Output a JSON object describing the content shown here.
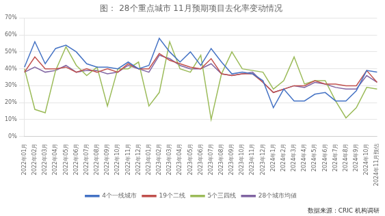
{
  "chart_data": {
    "type": "line",
    "title": "图： 28个重点城市 11月预期项目去化率变动情况",
    "annotations": [
      "数据来源：CRIC 机构调研"
    ],
    "categories": [
      "2022年01月",
      "2022年02月",
      "2022年03月",
      "2022年04月",
      "2022年05月",
      "2022年06月",
      "2022年07月",
      "2022年08月",
      "2022年09月",
      "2022年10月",
      "2022年11月",
      "2022年12月",
      "2023年01月",
      "2023年02月",
      "2023年03月",
      "2023年04月",
      "2023年05月",
      "2023年06月",
      "2023年07月",
      "2023年08月",
      "2023年09月",
      "2023年10月",
      "2023年11月",
      "2023年12月",
      "2024年1月",
      "2024年2月",
      "2024年3月",
      "2024年4月",
      "2024年5月",
      "2024年6月",
      "2024年7月",
      "2024年8月",
      "2024年9月",
      "2024年10月",
      "2024年11月预估"
    ],
    "series": [
      {
        "name": "4个一线城市",
        "color": "#4472C4",
        "values": [
          0.41,
          0.56,
          0.43,
          0.52,
          0.54,
          0.5,
          0.43,
          0.41,
          0.41,
          0.4,
          0.44,
          0.4,
          0.42,
          0.58,
          0.5,
          0.44,
          0.5,
          0.42,
          0.52,
          0.44,
          0.37,
          0.38,
          0.37,
          0.33,
          0.17,
          0.28,
          0.21,
          0.21,
          0.25,
          0.26,
          0.21,
          0.21,
          0.27,
          0.39,
          0.38
        ]
      },
      {
        "name": "19个二线",
        "color": "#C0504D",
        "values": [
          0.38,
          0.47,
          0.4,
          0.4,
          0.41,
          0.38,
          0.4,
          0.38,
          0.4,
          0.38,
          0.43,
          0.4,
          0.4,
          0.49,
          0.45,
          0.43,
          0.41,
          0.4,
          0.46,
          0.37,
          0.36,
          0.37,
          0.37,
          0.32,
          0.26,
          0.28,
          0.3,
          0.3,
          0.33,
          0.31,
          0.31,
          0.3,
          0.3,
          0.39,
          0.32
        ]
      },
      {
        "name": "5个三四线",
        "color": "#9BBB59",
        "values": [
          0.4,
          0.16,
          0.14,
          0.39,
          0.53,
          0.42,
          0.36,
          0.41,
          0.18,
          0.4,
          0.4,
          0.44,
          0.18,
          0.26,
          0.56,
          0.4,
          0.38,
          0.48,
          0.1,
          0.37,
          0.5,
          0.4,
          0.39,
          0.38,
          0.28,
          0.33,
          0.47,
          0.31,
          0.33,
          0.33,
          0.21,
          0.11,
          0.17,
          0.29,
          0.28
        ]
      },
      {
        "name": "28个城市均値",
        "color": "#8064A2",
        "values": [
          0.38,
          0.41,
          0.38,
          0.39,
          0.42,
          0.38,
          0.39,
          0.39,
          0.37,
          0.38,
          0.42,
          0.4,
          0.38,
          0.48,
          0.46,
          0.42,
          0.4,
          0.4,
          0.43,
          0.37,
          0.36,
          0.37,
          0.38,
          0.32,
          0.26,
          0.28,
          0.3,
          0.29,
          0.32,
          0.31,
          0.29,
          0.28,
          0.28,
          0.36,
          0.32
        ]
      }
    ],
    "ylim": [
      0,
      0.7
    ],
    "yticks": [
      {
        "value": 0.0,
        "label": "0%"
      },
      {
        "value": 0.1,
        "label": "10%"
      },
      {
        "value": 0.2,
        "label": "20%"
      },
      {
        "value": 0.3,
        "label": "30%"
      },
      {
        "value": 0.4,
        "label": "40%"
      },
      {
        "value": 0.5,
        "label": "50%"
      },
      {
        "value": 0.6,
        "label": "60%"
      },
      {
        "value": 0.7,
        "label": "70%"
      }
    ],
    "grid": true,
    "legend": "bottom"
  }
}
